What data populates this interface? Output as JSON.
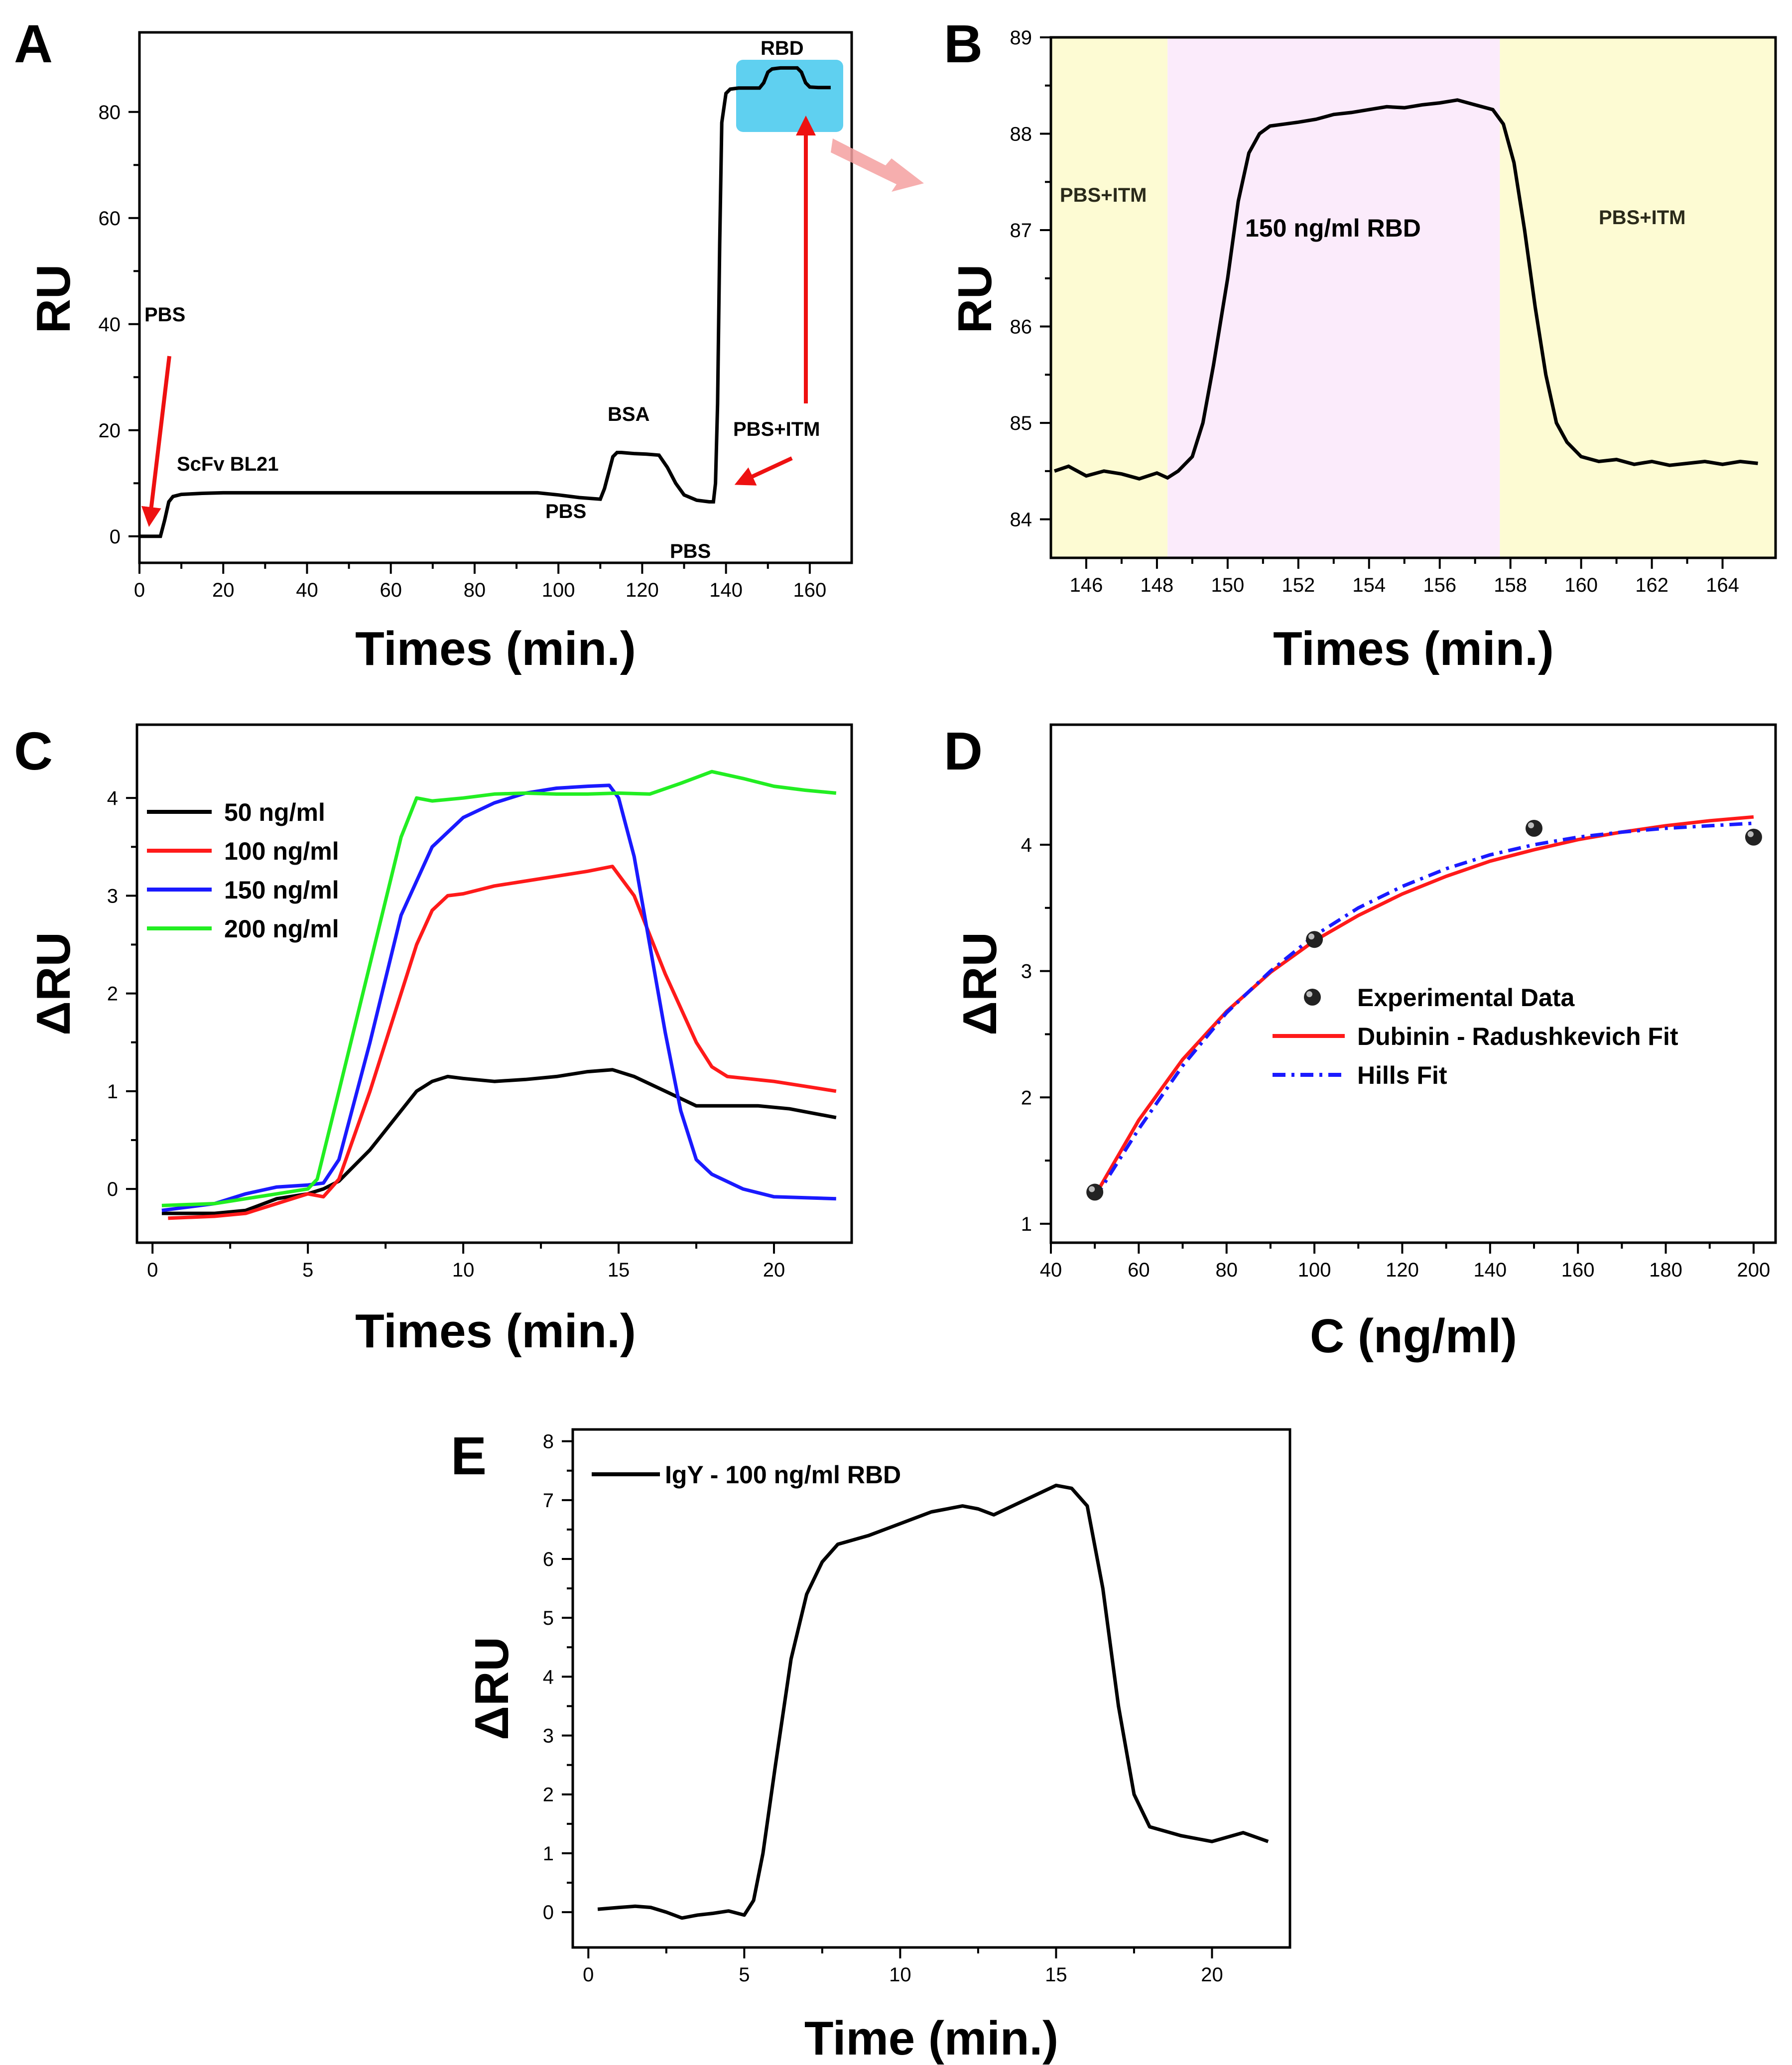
{
  "chart_data": [
    {
      "panel": "A",
      "type": "line",
      "xlabel": "Times (min.)",
      "ylabel": "RU",
      "xlim": [
        0,
        170
      ],
      "ylim": [
        -5,
        95
      ],
      "xticks": [
        "0",
        "20",
        "40",
        "60",
        "80",
        "100",
        "120",
        "140",
        "160"
      ],
      "yticks": [
        "0",
        "20",
        "40",
        "60",
        "80"
      ],
      "x": [
        0,
        4,
        5,
        6,
        7,
        8,
        10,
        15,
        20,
        40,
        60,
        80,
        95,
        100,
        105,
        110,
        111,
        112,
        113,
        114,
        115,
        118,
        121,
        124,
        126,
        128,
        130,
        133,
        136,
        137,
        137.5,
        138,
        138.5,
        139,
        140,
        141,
        143,
        145,
        148,
        149,
        150,
        151,
        152,
        153,
        155,
        157,
        158,
        159,
        160,
        162,
        165
      ],
      "values": [
        0,
        0,
        0,
        3,
        6.5,
        7.5,
        7.9,
        8.1,
        8.2,
        8.2,
        8.2,
        8.2,
        8.2,
        7.8,
        7.3,
        7,
        9,
        12,
        15,
        15.8,
        15.8,
        15.6,
        15.5,
        15.3,
        13,
        10,
        7.8,
        6.8,
        6.5,
        6.5,
        10,
        25,
        55,
        78,
        83.5,
        84.3,
        84.5,
        84.5,
        84.5,
        85.5,
        87.5,
        88.1,
        88.2,
        88.3,
        88.3,
        88.3,
        87.5,
        85.5,
        84.7,
        84.6,
        84.6
      ],
      "annotations": [
        "PBS",
        "ScFv BL21",
        "PBS",
        "BSA",
        "PBS",
        "PBS+ITM",
        "RBD"
      ],
      "colors": {
        "line": "#000000",
        "arrow": "#ee1111",
        "highlight": "#5fd0f0",
        "zoom_arrow": "#f4a0a0"
      }
    },
    {
      "panel": "B",
      "type": "line",
      "xlabel": "Times (min.)",
      "ylabel": "RU",
      "xlim": [
        145,
        165.5
      ],
      "ylim": [
        83.6,
        89
      ],
      "xticks": [
        "146",
        "148",
        "150",
        "152",
        "154",
        "156",
        "158",
        "160",
        "162",
        "164"
      ],
      "yticks": [
        "84",
        "85",
        "86",
        "87",
        "88",
        "89"
      ],
      "x": [
        145.1,
        145.5,
        146,
        146.5,
        147,
        147.5,
        148,
        148.3,
        148.6,
        149,
        149.3,
        149.6,
        150,
        150.3,
        150.6,
        150.9,
        151.2,
        151.6,
        152,
        152.5,
        153,
        153.5,
        154,
        154.5,
        155,
        155.5,
        156,
        156.5,
        157,
        157.5,
        157.8,
        158.1,
        158.4,
        158.7,
        159,
        159.3,
        159.6,
        160,
        160.5,
        161,
        161.5,
        162,
        162.5,
        163,
        163.5,
        164,
        164.5,
        165
      ],
      "values": [
        84.5,
        84.55,
        84.45,
        84.5,
        84.47,
        84.42,
        84.48,
        84.43,
        84.5,
        84.65,
        85.0,
        85.6,
        86.5,
        87.3,
        87.8,
        88.0,
        88.08,
        88.1,
        88.12,
        88.15,
        88.2,
        88.22,
        88.25,
        88.28,
        88.27,
        88.3,
        88.32,
        88.35,
        88.3,
        88.25,
        88.1,
        87.7,
        87.0,
        86.2,
        85.5,
        85.0,
        84.8,
        84.65,
        84.6,
        84.62,
        84.57,
        84.6,
        84.56,
        84.58,
        84.6,
        84.57,
        84.6,
        84.58
      ],
      "regions": [
        {
          "label": "PBS+ITM",
          "from": 145,
          "to": 148.3,
          "color": "#fdfbd3"
        },
        {
          "label": "150 ng/ml RBD",
          "from": 148.3,
          "to": 157.7,
          "color": "#fbebfb"
        },
        {
          "label": "PBS+ITM",
          "from": 157.7,
          "to": 165.5,
          "color": "#fdfbd3"
        }
      ]
    },
    {
      "panel": "C",
      "type": "line",
      "xlabel": "Times (min.)",
      "ylabel": "ΔRU",
      "xlim": [
        -0.5,
        22.5
      ],
      "ylim": [
        -0.55,
        4.75
      ],
      "xticks": [
        "0",
        "5",
        "10",
        "15",
        "20"
      ],
      "yticks": [
        "0",
        "1",
        "2",
        "3",
        "4"
      ],
      "series": [
        {
          "name": "50 ng/ml",
          "color": "#000000",
          "x": [
            0.3,
            2,
            3,
            4,
            5,
            5.5,
            6,
            7,
            8,
            8.5,
            9,
            9.5,
            10,
            11,
            12,
            13,
            14,
            14.8,
            15.5,
            16.5,
            17.5,
            18.5,
            19.5,
            20.5,
            22
          ],
          "values": [
            -0.25,
            -0.25,
            -0.22,
            -0.1,
            -0.05,
            0,
            0.08,
            0.4,
            0.8,
            1.0,
            1.1,
            1.15,
            1.13,
            1.1,
            1.12,
            1.15,
            1.2,
            1.22,
            1.15,
            1.0,
            0.85,
            0.85,
            0.85,
            0.82,
            0.73
          ]
        },
        {
          "name": "100 ng/ml",
          "color": "#ff1a1a",
          "x": [
            0.5,
            2,
            3,
            4,
            5,
            5.5,
            6,
            7,
            8,
            8.5,
            9,
            9.5,
            10,
            11,
            12,
            13,
            14,
            14.8,
            15.5,
            16.5,
            17.5,
            18,
            18.5,
            20,
            22
          ],
          "values": [
            -0.3,
            -0.28,
            -0.25,
            -0.15,
            -0.05,
            -0.08,
            0.1,
            1.0,
            2.0,
            2.5,
            2.85,
            3.0,
            3.02,
            3.1,
            3.15,
            3.2,
            3.25,
            3.3,
            3.0,
            2.2,
            1.5,
            1.25,
            1.15,
            1.1,
            1.0
          ]
        },
        {
          "name": "150 ng/ml",
          "color": "#1a1aff",
          "x": [
            0.3,
            2,
            3,
            4,
            5,
            5.5,
            6,
            7,
            8,
            9,
            10,
            11,
            12,
            13,
            14,
            14.7,
            15,
            15.5,
            16,
            16.5,
            17,
            17.5,
            18,
            19,
            20,
            22
          ],
          "values": [
            -0.22,
            -0.15,
            -0.05,
            0.02,
            0.04,
            0.06,
            0.3,
            1.5,
            2.8,
            3.5,
            3.8,
            3.95,
            4.05,
            4.1,
            4.12,
            4.13,
            4.0,
            3.4,
            2.5,
            1.6,
            0.8,
            0.3,
            0.15,
            0.0,
            -0.08,
            -0.1
          ]
        },
        {
          "name": "200 ng/ml",
          "color": "#22ee22",
          "x": [
            0.3,
            2,
            3,
            4,
            5,
            5.3,
            6,
            7,
            8,
            8.5,
            9,
            10,
            11,
            12,
            13,
            14,
            15,
            16,
            17,
            18,
            19,
            20,
            21,
            22
          ],
          "values": [
            -0.17,
            -0.15,
            -0.1,
            -0.05,
            0.0,
            0.1,
            1.0,
            2.3,
            3.6,
            4.0,
            3.97,
            4.0,
            4.04,
            4.05,
            4.04,
            4.04,
            4.05,
            4.04,
            4.15,
            4.27,
            4.2,
            4.12,
            4.08,
            4.05
          ]
        }
      ]
    },
    {
      "panel": "D",
      "type": "scatter",
      "xlabel": "C (ng/ml)",
      "ylabel": "ΔRU",
      "xlim": [
        40,
        205
      ],
      "ylim": [
        0.85,
        4.95
      ],
      "xticks": [
        "40",
        "60",
        "80",
        "100",
        "120",
        "140",
        "160",
        "180",
        "200"
      ],
      "yticks": [
        "1",
        "2",
        "3",
        "4"
      ],
      "series": [
        {
          "name": "Experimental Data",
          "color": "#000000",
          "x": [
            50,
            100,
            150,
            200
          ],
          "values": [
            1.25,
            3.25,
            4.13,
            4.06
          ]
        },
        {
          "name": "Dubinin - Radushkevich Fit",
          "color": "#ff1a1a",
          "x": [
            50,
            60,
            70,
            80,
            90,
            100,
            110,
            120,
            130,
            140,
            150,
            160,
            170,
            180,
            190,
            200
          ],
          "values": [
            1.22,
            1.82,
            2.3,
            2.68,
            2.99,
            3.24,
            3.44,
            3.61,
            3.75,
            3.87,
            3.96,
            4.04,
            4.1,
            4.15,
            4.19,
            4.22
          ]
        },
        {
          "name": "Hills Fit",
          "color": "#1a1aff",
          "x": [
            50,
            60,
            70,
            80,
            90,
            100,
            110,
            120,
            130,
            140,
            150,
            160,
            170,
            180,
            190,
            200
          ],
          "values": [
            1.2,
            1.75,
            2.25,
            2.67,
            3.0,
            3.28,
            3.5,
            3.67,
            3.81,
            3.92,
            4.0,
            4.06,
            4.1,
            4.13,
            4.15,
            4.17
          ]
        }
      ]
    },
    {
      "panel": "E",
      "type": "line",
      "xlabel": "Time (min.)",
      "ylabel": "ΔRU",
      "xlim": [
        -0.5,
        22.5
      ],
      "ylim": [
        -0.6,
        8.2
      ],
      "xticks": [
        "0",
        "5",
        "10",
        "15",
        "20"
      ],
      "yticks": [
        "0",
        "1",
        "2",
        "3",
        "4",
        "5",
        "6",
        "7",
        "8"
      ],
      "series": [
        {
          "name": "IgY - 100 ng/ml RBD",
          "color": "#000000",
          "x": [
            0.3,
            1,
            1.5,
            2,
            2.5,
            3,
            3.5,
            4,
            4.5,
            5,
            5.3,
            5.6,
            6,
            6.5,
            7,
            7.5,
            8,
            9,
            10,
            11,
            12,
            12.5,
            13,
            14,
            15,
            15.5,
            16,
            16.5,
            17,
            17.5,
            18,
            19,
            20,
            21,
            21.8
          ],
          "values": [
            0.05,
            0.08,
            0.1,
            0.08,
            0.0,
            -0.1,
            -0.05,
            -0.02,
            0.02,
            -0.05,
            0.2,
            1.0,
            2.5,
            4.3,
            5.4,
            5.95,
            6.25,
            6.4,
            6.6,
            6.8,
            6.9,
            6.85,
            6.75,
            7.0,
            7.25,
            7.2,
            6.9,
            5.5,
            3.5,
            2.0,
            1.45,
            1.3,
            1.2,
            1.35,
            1.2
          ]
        }
      ]
    }
  ]
}
